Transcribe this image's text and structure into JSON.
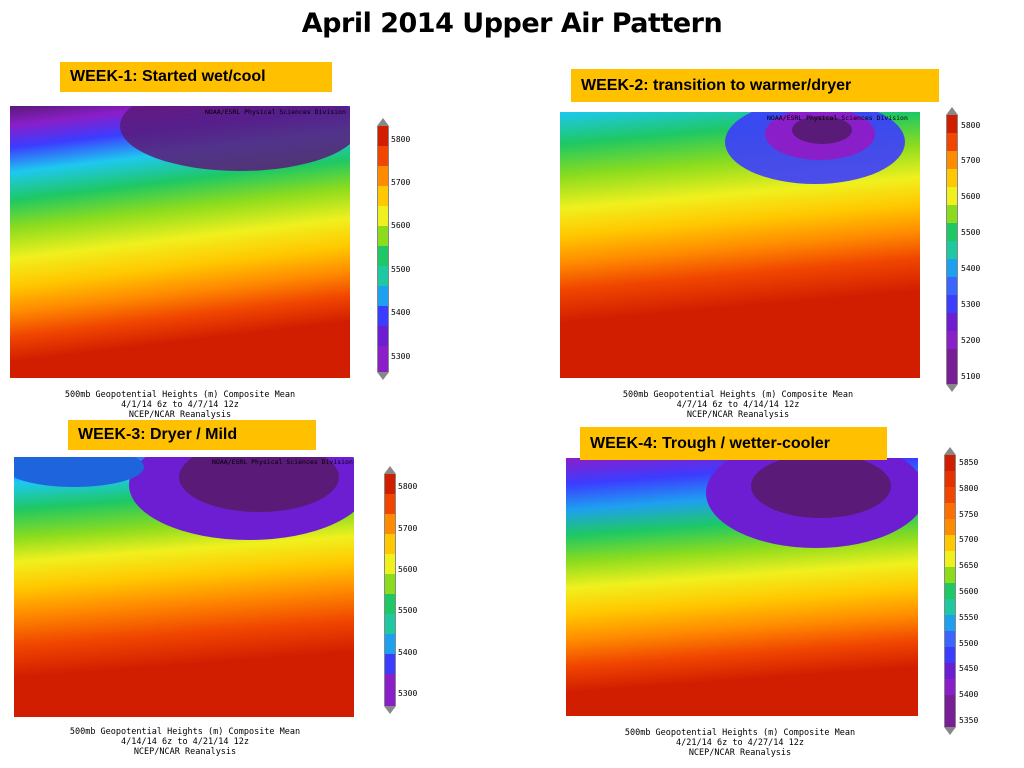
{
  "title": "April 2014 Upper Air Pattern",
  "source_label": "NOAA/ESRL Physical Sciences Division",
  "caption_line1": "500mb Geopotential Heights (m)   Composite Mean",
  "caption_line3": "NCEP/NCAR Reanalysis",
  "panels": [
    {
      "label": "WEEK-1: Started wet/cool",
      "dates": "4/1/14 6z  to 4/7/14 12z",
      "scale": [
        "5800",
        "5700",
        "5600",
        "5500",
        "5400",
        "5300"
      ]
    },
    {
      "label": "WEEK-2: transition to warmer/dryer",
      "dates": "4/7/14 6z  to 4/14/14 12z",
      "scale": [
        "5800",
        "5700",
        "5600",
        "5500",
        "5400",
        "5300",
        "5200",
        "5100"
      ]
    },
    {
      "label": "WEEK-3: Dryer / Mild",
      "dates": "4/14/14 6z  to 4/21/14 12z",
      "scale": [
        "5800",
        "5700",
        "5600",
        "5500",
        "5400",
        "5300"
      ]
    },
    {
      "label": "WEEK-4: Trough / wetter-cooler",
      "dates": "4/21/14 6z  to 4/27/14 12z",
      "scale": [
        "5850",
        "5800",
        "5750",
        "5700",
        "5650",
        "5600",
        "5550",
        "5500",
        "5450",
        "5400",
        "5350"
      ]
    }
  ],
  "colors": {
    "label_bg": "#ffc000"
  }
}
